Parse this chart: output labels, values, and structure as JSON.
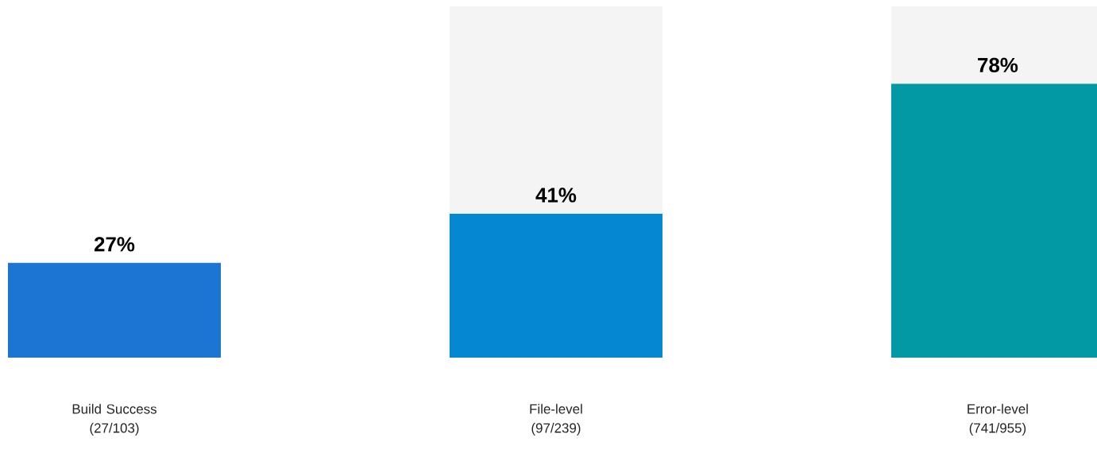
{
  "chart_data": {
    "type": "bar",
    "stacked": true,
    "categories": [
      "Build Success (27/103)",
      "File-level (97/239)",
      "Error-level (741/955)"
    ],
    "series": [
      {
        "colors": [
          "#1c75d3",
          "#0588d1",
          "#0299a5"
        ],
        "values": [
          27,
          41,
          78
        ],
        "value_labels": [
          "27%",
          "41%",
          "78%"
        ]
      },
      {
        "color": "#f4f4f4",
        "values": [
          null,
          59,
          22
        ]
      }
    ]
  }
}
